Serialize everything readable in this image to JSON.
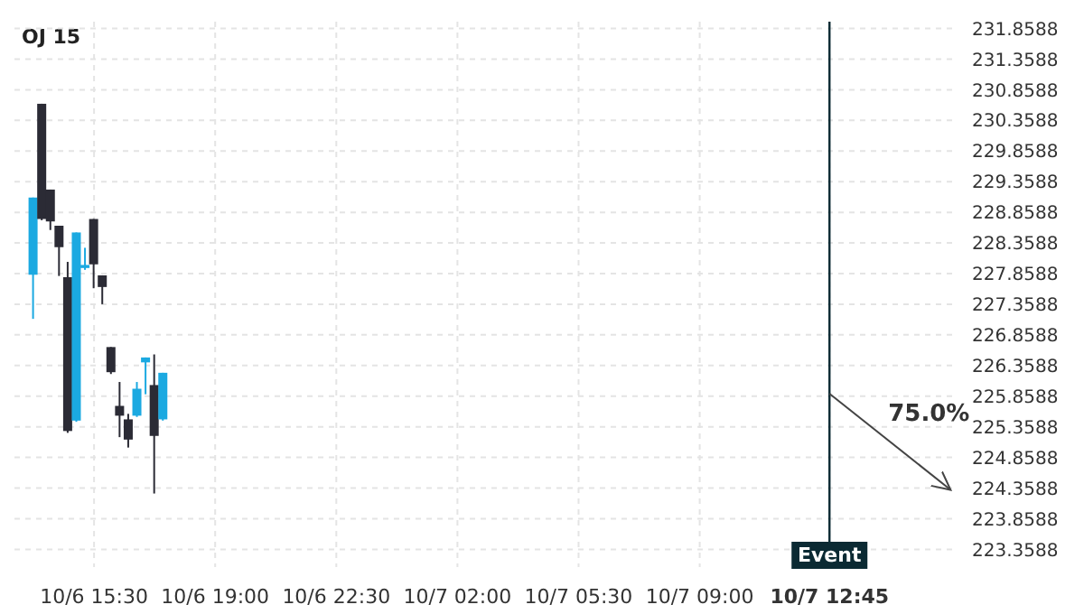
{
  "chart_data": {
    "type": "candlestick",
    "title": "OJ 15",
    "x": [
      "--10-06T13:45",
      "--10-06T14:00",
      "--10-06T14:15",
      "--10-06T14:30",
      "--10-06T14:45",
      "--10-06T15:00",
      "--10-06T15:15",
      "--10-06T15:30",
      "--10-06T15:45",
      "--10-06T16:00",
      "--10-06T16:15",
      "--10-06T16:30",
      "--10-06T16:45",
      "--10-06T17:00",
      "--10-06T17:15",
      "--10-06T17:30"
    ],
    "ohlc": [
      [
        227.84,
        229.1,
        227.12,
        229.1
      ],
      [
        230.63,
        230.63,
        228.73,
        228.75
      ],
      [
        229.23,
        229.23,
        228.57,
        228.71
      ],
      [
        228.64,
        228.64,
        227.82,
        228.29
      ],
      [
        227.8,
        228.05,
        225.26,
        225.29
      ],
      [
        225.46,
        228.53,
        225.44,
        228.53
      ],
      [
        227.95,
        228.28,
        227.92,
        228.0
      ],
      [
        228.75,
        228.75,
        227.62,
        228.01
      ],
      [
        227.83,
        227.83,
        227.36,
        227.64
      ],
      [
        226.66,
        226.66,
        226.22,
        226.25
      ],
      [
        225.7,
        226.09,
        225.19,
        225.54
      ],
      [
        225.48,
        225.57,
        225.02,
        225.15
      ],
      [
        225.54,
        226.09,
        225.52,
        225.98
      ],
      [
        226.41,
        226.49,
        225.89,
        226.49
      ],
      [
        226.04,
        226.54,
        224.27,
        225.21
      ],
      [
        225.48,
        226.24,
        225.46,
        226.24
      ]
    ],
    "colors": [
      "#1ba9e1",
      "#2b2b35",
      "#2b2b35",
      "#2b2b35",
      "#2b2b35",
      "#1ba9e1",
      "#1ba9e1",
      "#2b2b35",
      "#2b2b35",
      "#2b2b35",
      "#2b2b35",
      "#2b2b35",
      "#1ba9e1",
      "#1ba9e1",
      "#2b2b35",
      "#1ba9e1"
    ],
    "series": [
      {
        "type": "line",
        "color": "#444444",
        "x": [
          "--10-07T12:45",
          "--10-07T16:15"
        ],
        "values": [
          225.9,
          224.33
        ]
      }
    ],
    "annotations": [
      "75.0%"
    ],
    "ref_lines": [
      {
        "axis": "x",
        "value": "--10-07T12:45",
        "label": "Event",
        "color": "#0b2a33"
      }
    ],
    "xlim": [
      "--10-06T13:12",
      "--10-07T16:27"
    ],
    "xticks": [
      {
        "value": "--10-06T15:30",
        "label": "10/6 15:30"
      },
      {
        "value": "--10-06T19:00",
        "label": "10/6 19:00"
      },
      {
        "value": "--10-06T22:30",
        "label": "10/6 22:30"
      },
      {
        "value": "--10-07T02:00",
        "label": "10/7 02:00"
      },
      {
        "value": "--10-07T05:30",
        "label": "10/7 05:30"
      },
      {
        "value": "--10-07T09:00",
        "label": "10/7 09:00"
      },
      {
        "value": "--10-07T12:45",
        "label": "10/7 12:45"
      }
    ],
    "ylim": [
      223.07,
      231.97
    ],
    "yticks": [
      223.3588,
      223.8588,
      224.3588,
      224.8588,
      225.3588,
      225.8588,
      226.3588,
      226.8588,
      227.3588,
      227.8588,
      228.3588,
      228.8588,
      229.3588,
      229.8588,
      230.3588,
      230.8588,
      231.3588,
      231.8588
    ],
    "grid": true
  }
}
